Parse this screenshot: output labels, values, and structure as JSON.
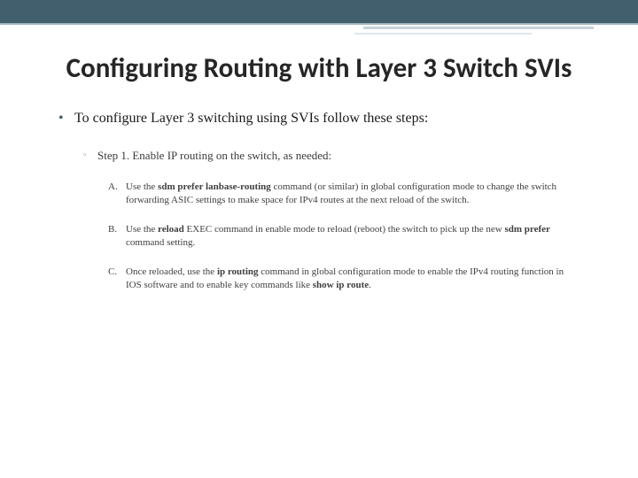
{
  "title": "Configuring Routing with Layer 3 Switch SVIs",
  "main_bullet": "To configure Layer 3 switching using SVIs follow these steps:",
  "step1": "Step 1. Enable IP routing on the switch, as needed:",
  "items": {
    "a": {
      "label": "A.",
      "pre": "Use the ",
      "b1": "sdm prefer lanbase-routing",
      "rest": " command (or similar) in global configuration mode to change the switch forwarding ASIC settings to make space for IPv4 routes at the next reload of the switch."
    },
    "b": {
      "label": "B.",
      "pre": "Use the ",
      "b1": "reload",
      "mid": " EXEC command in enable mode to reload (reboot) the switch to pick up the new ",
      "b2": "sdm prefer",
      "rest": " command setting."
    },
    "c": {
      "label": "C.",
      "pre": "Once reloaded, use the ",
      "b1": "ip routing",
      "mid": " command in global configuration mode to enable the IPv4 routing function in IOS software and to enable key commands like ",
      "b2": "show ip route",
      "rest": "."
    }
  },
  "colors": {
    "topbar": "#415f6c",
    "topbar_underline": "#9fb4bc"
  }
}
